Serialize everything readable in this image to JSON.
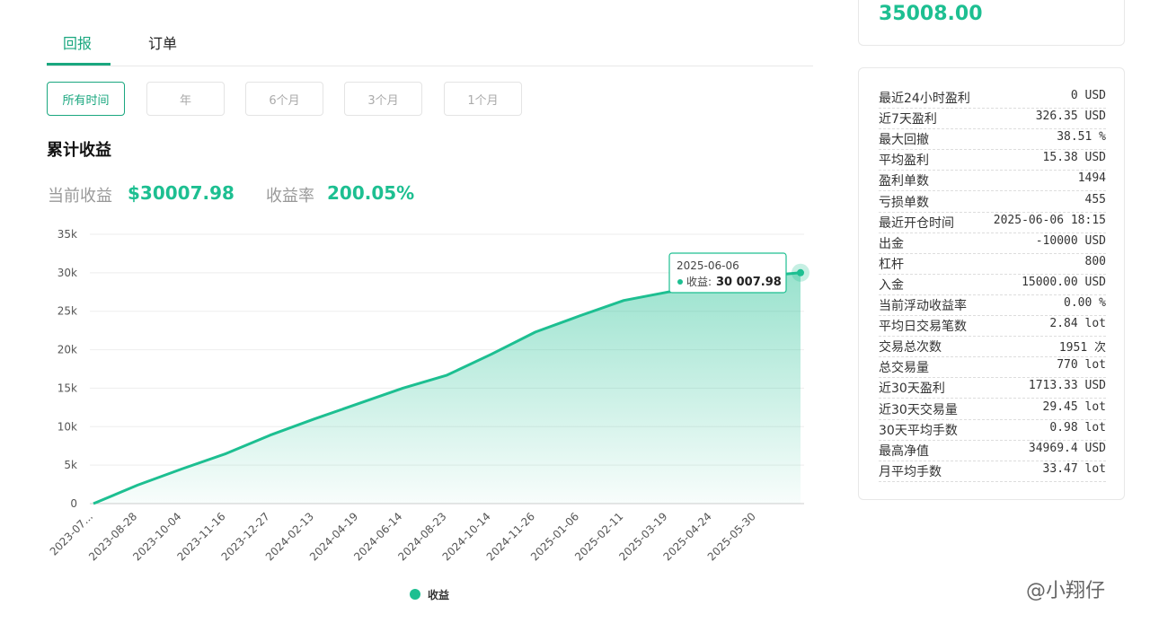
{
  "tabs": [
    "回报",
    "订单"
  ],
  "ranges": [
    "所有时间",
    "年",
    "6个月",
    "3个月",
    "1个月"
  ],
  "section_title": "累计收益",
  "summary": {
    "profit_label": "当前收益",
    "profit": "$30007.98",
    "rate_label": "收益率",
    "rate": "200.05%"
  },
  "balance": "35008.00",
  "stats": [
    [
      "最近24小时盈利",
      "0 USD"
    ],
    [
      "近7天盈利",
      "326.35 USD"
    ],
    [
      "最大回撤",
      "38.51 %"
    ],
    [
      "平均盈利",
      "15.38 USD"
    ],
    [
      "盈利单数",
      "1494"
    ],
    [
      "亏损单数",
      "455"
    ],
    [
      "最近开仓时间",
      "2025-06-06 18:15"
    ],
    [
      "出金",
      "-10000 USD"
    ],
    [
      "杠杆",
      "800"
    ],
    [
      "入金",
      "15000.00 USD"
    ],
    [
      "当前浮动收益率",
      "0.00 %"
    ],
    [
      "平均日交易笔数",
      "2.84 lot"
    ],
    [
      "交易总次数",
      "1951 次"
    ],
    [
      "总交易量",
      "770 lot"
    ],
    [
      "近30天盈利",
      "1713.33 USD"
    ],
    [
      "近30天交易量",
      "29.45 lot"
    ],
    [
      "30天平均手数",
      "0.98 lot"
    ],
    [
      "最高净值",
      "34969.4 USD"
    ],
    [
      "月平均手数",
      "33.47 lot"
    ]
  ],
  "watermark": "@小翔仔",
  "chart_data": {
    "type": "area",
    "categories": [
      "2023-07...",
      "2023-08-28",
      "2023-10-04",
      "2023-11-16",
      "2023-12-27",
      "2024-02-13",
      "2024-04-19",
      "2024-06-14",
      "2024-08-23",
      "2024-10-14",
      "2024-11-26",
      "2025-01-06",
      "2025-02-11",
      "2025-03-19",
      "2025-04-24",
      "2025-05-30",
      "2025-06-06"
    ],
    "series": [
      {
        "name": "收益",
        "color": "#1dbf91",
        "values": [
          0,
          2400,
          4500,
          6500,
          8900,
          11000,
          13000,
          15000,
          16700,
          19400,
          22300,
          24400,
          26400,
          27500,
          28000,
          29500,
          30007.98
        ]
      }
    ],
    "ylim": [
      0,
      35000
    ],
    "yticks": [
      0,
      {
        "value": 5000,
        "label": "5k"
      },
      {
        "value": 10000,
        "label": "10k"
      },
      {
        "value": 15000,
        "label": "15k"
      },
      {
        "value": 20000,
        "label": "20k"
      },
      {
        "value": 25000,
        "label": "25k"
      },
      {
        "value": 30000,
        "label": "30k"
      },
      {
        "value": 35000,
        "label": "35k"
      }
    ],
    "grid": true,
    "tooltip": {
      "label": "收益:",
      "value_label": "30 007.98"
    }
  }
}
